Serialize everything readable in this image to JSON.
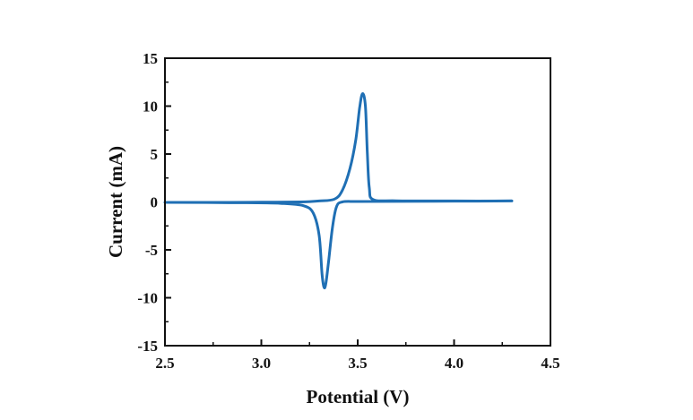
{
  "chart_data": {
    "type": "line",
    "title": "",
    "xlabel": "Potential (V)",
    "ylabel": "Current (mA)",
    "xlim": [
      2.5,
      4.5
    ],
    "ylim": [
      -15,
      15
    ],
    "x_ticks": [
      2.5,
      3.0,
      3.5,
      4.0,
      4.5
    ],
    "x_tick_labels": [
      "2.5",
      "3.0",
      "3.5",
      "4.0",
      "4.5"
    ],
    "y_ticks": [
      -15,
      -10,
      -5,
      0,
      5,
      10,
      15
    ],
    "y_tick_labels": [
      "-15",
      "-10",
      "-5",
      "0",
      "5",
      "10",
      "15"
    ],
    "grid": false,
    "legend": "none",
    "series_color": "#1f6fb4",
    "series": [
      {
        "x": [
          2.5,
          2.8,
          3.0,
          3.2,
          3.3,
          3.38,
          3.42,
          3.46,
          3.49,
          3.51,
          3.525,
          3.54,
          3.55,
          3.56,
          3.58,
          3.7,
          4.0,
          4.3,
          4.0,
          3.7,
          3.5,
          3.42,
          3.39,
          3.37,
          3.35,
          3.335,
          3.325,
          3.315,
          3.3,
          3.27,
          3.22,
          3.1,
          2.9,
          2.5
        ],
        "y": [
          -0.05,
          -0.05,
          -0.03,
          0.0,
          0.1,
          0.3,
          1.2,
          3.5,
          6.5,
          9.8,
          11.3,
          10.0,
          5.0,
          1.5,
          0.25,
          0.12,
          0.1,
          0.1,
          0.08,
          0.06,
          0.05,
          0.0,
          -0.5,
          -2.5,
          -6.0,
          -8.5,
          -8.9,
          -7.5,
          -3.5,
          -1.2,
          -0.4,
          -0.15,
          -0.08,
          -0.05
        ]
      }
    ]
  }
}
